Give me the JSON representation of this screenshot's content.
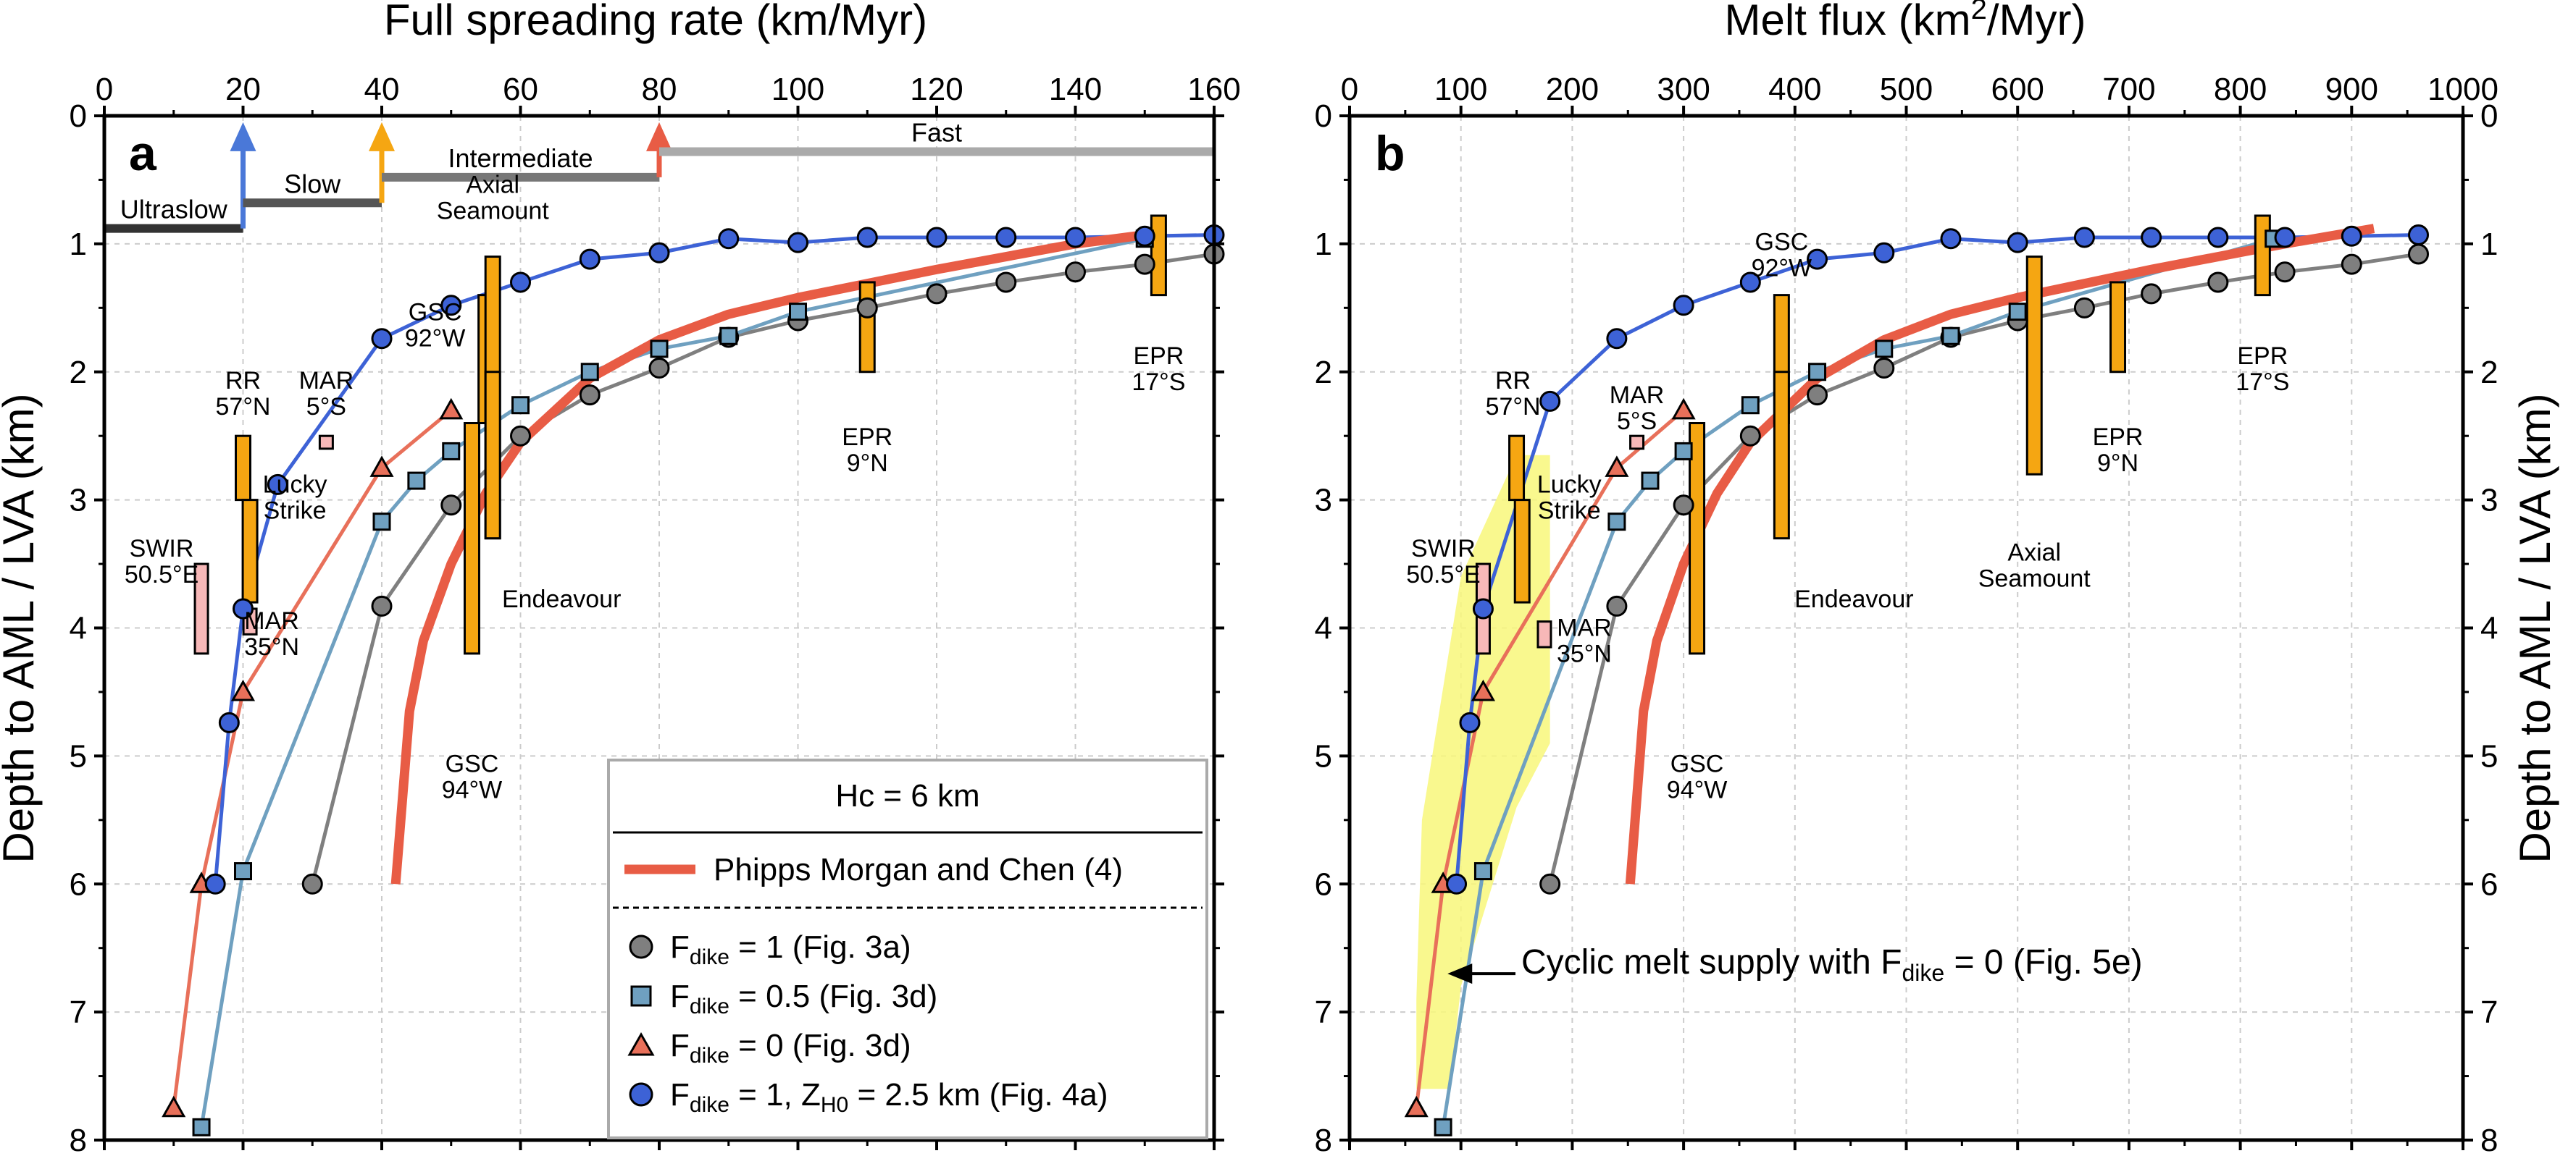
{
  "ylabel": "Depth to AML / LVA (km)",
  "colors": {
    "dike1": "#7f7f7f",
    "dike05": "#6fa0c0",
    "dike0": "#e8705a",
    "zh0": "#3d62d6",
    "pmc": "#e85c45",
    "bar": "#f5a612",
    "pinkbar": "#f7b8b8",
    "cyclic": "#f8f77a",
    "arrow_ultraslow": "#4a78d8",
    "arrow_slow": "#f5a612",
    "arrow_intermediate": "#e85c45"
  },
  "legend": {
    "title": "Hc = 6 km",
    "pmc": "Phipps Morgan and Chen (4)",
    "d1_pre": "F",
    "d1_sub": "dike",
    "d1_post": " = 1 (Fig. 3a)",
    "d05_pre": "F",
    "d05_sub": "dike",
    "d05_post": " = 0.5 (Fig. 3d)",
    "d0_pre": "F",
    "d0_sub": "dike",
    "d0_post": " = 0 (Fig. 3d)",
    "zh_pre": "F",
    "zh_sub": "dike",
    "zh_mid": " = 1, Z",
    "zh_sub2": "H0",
    "zh_post": " = 2.5 km (Fig. 4a)"
  },
  "chart_data": [
    {
      "panel": "a",
      "type": "line",
      "xlabel": "Full spreading rate (km/Myr)",
      "ylabel": "Depth to AML / LVA (km)",
      "xlim": [
        0,
        160
      ],
      "ylim": [
        8,
        0
      ],
      "xticks": [
        0,
        20,
        40,
        60,
        80,
        100,
        120,
        140,
        160
      ],
      "yticks": [
        0,
        1,
        2,
        3,
        4,
        5,
        6,
        7,
        8
      ],
      "grid": true,
      "series": [
        {
          "name": "Fdike = 1 (Fig. 3a)",
          "marker": "circle",
          "x": [
            30,
            40,
            50,
            60,
            70,
            80,
            90,
            100,
            110,
            120,
            130,
            140,
            150,
            160
          ],
          "y": [
            6.0,
            3.83,
            3.04,
            2.5,
            2.18,
            1.97,
            1.73,
            1.6,
            1.5,
            1.39,
            1.3,
            1.22,
            1.16,
            1.08
          ]
        },
        {
          "name": "Fdike = 0.5 (Fig. 3d)",
          "marker": "square",
          "x": [
            14,
            20,
            40,
            45,
            50,
            60,
            70,
            80,
            90,
            100,
            150
          ],
          "y": [
            7.9,
            5.9,
            3.17,
            2.85,
            2.62,
            2.26,
            2.0,
            1.82,
            1.72,
            1.53,
            0.96
          ]
        },
        {
          "name": "Fdike = 0 (Fig. 3d)",
          "marker": "triangle",
          "x": [
            10,
            14,
            20,
            40,
            50
          ],
          "y": [
            7.75,
            6.0,
            4.5,
            2.75,
            2.3
          ]
        },
        {
          "name": "Fdike = 1, ZH0 = 2.5 km (Fig. 4a)",
          "marker": "circle",
          "x": [
            16,
            18,
            20,
            25,
            40,
            50,
            60,
            70,
            80,
            90,
            100,
            110,
            120,
            130,
            140,
            150,
            160
          ],
          "y": [
            6.0,
            4.74,
            3.85,
            2.88,
            1.74,
            1.48,
            1.3,
            1.12,
            1.07,
            0.96,
            0.99,
            0.95,
            0.95,
            0.95,
            0.95,
            0.94,
            0.93
          ]
        },
        {
          "name": "Phipps Morgan and Chen (4)",
          "marker": "none",
          "x": [
            42,
            44,
            46,
            50,
            55,
            60,
            70,
            80,
            90,
            100,
            120,
            140,
            150
          ],
          "y": [
            6.0,
            4.65,
            4.1,
            3.5,
            2.95,
            2.55,
            2.05,
            1.75,
            1.55,
            1.42,
            1.2,
            1.0,
            0.93
          ]
        }
      ],
      "ranges": [
        {
          "label": "Ultraslow",
          "x": [
            0,
            20
          ],
          "y": 0.88
        },
        {
          "label": "Slow",
          "x": [
            20,
            40
          ],
          "y": 0.68
        },
        {
          "label": "Intermediate",
          "x": [
            40,
            80
          ],
          "y": 0.48
        },
        {
          "label": "Fast",
          "x": [
            80,
            160
          ],
          "y": 0.28
        }
      ],
      "sites": [
        {
          "label": [
            "RR",
            "57°N"
          ],
          "x": 20,
          "y": [
            2.5,
            3.0
          ]
        },
        {
          "label": [
            "Lucky",
            "Strike"
          ],
          "x": 21,
          "y": [
            3.0,
            3.8
          ]
        },
        {
          "label": [
            "SWIR",
            "50.5°E"
          ],
          "x": 14,
          "y": [
            3.5,
            4.2
          ],
          "pink": true
        },
        {
          "label": [
            "MAR",
            "5°S"
          ],
          "x": 32,
          "y": [
            2.5,
            2.6
          ],
          "pink": true
        },
        {
          "label": [
            "MAR",
            "35°N"
          ],
          "x": 21,
          "y": [
            3.85,
            4.05
          ],
          "pink": true
        },
        {
          "label": [
            "GSC",
            "92°W"
          ],
          "x": 55,
          "y": [
            1.4,
            2.4
          ]
        },
        {
          "label": [
            "Axial",
            "Seamount"
          ],
          "x": 56,
          "y": [
            1.1,
            3.3
          ]
        },
        {
          "label": [
            "Endeavour"
          ],
          "x": 56,
          "y": [
            2.0,
            3.3
          ]
        },
        {
          "label": [
            "GSC",
            "94°W"
          ],
          "x": 53,
          "y": [
            2.4,
            4.2
          ]
        },
        {
          "label": [
            "EPR",
            "9°N"
          ],
          "x": 110,
          "y": [
            1.3,
            2.0
          ]
        },
        {
          "label": [
            "EPR",
            "17°S"
          ],
          "x": 152,
          "y": [
            0.78,
            1.4
          ]
        }
      ]
    },
    {
      "panel": "b",
      "type": "line",
      "xlabel": "Melt flux (km²/Myr)",
      "ylabel": "Depth to AML / LVA (km)",
      "xlim": [
        0,
        1000
      ],
      "ylim": [
        8,
        0
      ],
      "xticks": [
        0,
        100,
        200,
        300,
        400,
        500,
        600,
        700,
        800,
        900,
        1000
      ],
      "yticks": [
        0,
        1,
        2,
        3,
        4,
        5,
        6,
        7,
        8
      ],
      "grid": true,
      "series": [
        {
          "name": "Fdike = 1 (Fig. 3a)",
          "marker": "circle",
          "x": [
            180,
            240,
            300,
            360,
            420,
            480,
            540,
            600,
            660,
            720,
            780,
            840,
            900,
            960
          ],
          "y": [
            6.0,
            3.83,
            3.04,
            2.5,
            2.18,
            1.97,
            1.73,
            1.6,
            1.5,
            1.39,
            1.3,
            1.22,
            1.16,
            1.08
          ]
        },
        {
          "name": "Fdike = 0.5 (Fig. 3d)",
          "marker": "square",
          "x": [
            84,
            120,
            240,
            270,
            300,
            360,
            420,
            480,
            540,
            600,
            830
          ],
          "y": [
            7.9,
            5.9,
            3.17,
            2.85,
            2.62,
            2.26,
            2.0,
            1.82,
            1.72,
            1.53,
            0.96
          ]
        },
        {
          "name": "Fdike = 0 (Fig. 3d)",
          "marker": "triangle",
          "x": [
            60,
            84,
            120,
            240,
            300
          ],
          "y": [
            7.75,
            6.0,
            4.5,
            2.75,
            2.3
          ]
        },
        {
          "name": "Fdike = 1, ZH0 = 2.5 km (Fig. 4a)",
          "marker": "circle",
          "x": [
            96,
            108,
            120,
            180,
            240,
            300,
            360,
            420,
            480,
            540,
            600,
            660,
            720,
            780,
            840,
            900,
            960
          ],
          "y": [
            6.0,
            4.74,
            3.85,
            2.23,
            1.74,
            1.48,
            1.3,
            1.12,
            1.07,
            0.96,
            0.99,
            0.95,
            0.95,
            0.95,
            0.95,
            0.94,
            0.93
          ]
        },
        {
          "name": "Phipps Morgan and Chen (4)",
          "marker": "none",
          "x": [
            252,
            264,
            276,
            300,
            330,
            360,
            420,
            480,
            540,
            600,
            720,
            840,
            920
          ],
          "y": [
            6.0,
            4.65,
            4.1,
            3.5,
            2.95,
            2.55,
            2.05,
            1.75,
            1.55,
            1.42,
            1.2,
            1.0,
            0.88
          ]
        }
      ],
      "annotation": {
        "text_pre": "Cyclic melt supply with F",
        "text_sub": "dike",
        "text_post": " = 0 (Fig. 5e)",
        "arrow_to": [
          88,
          6.7
        ]
      },
      "cyclic_region": [
        [
          60,
          6.9
        ],
        [
          65,
          5.5
        ],
        [
          100,
          3.6
        ],
        [
          150,
          2.65
        ],
        [
          180,
          2.65
        ],
        [
          180,
          4.9
        ],
        [
          150,
          5.4
        ],
        [
          100,
          6.8
        ],
        [
          90,
          7.6
        ],
        [
          60,
          7.6
        ]
      ],
      "sites": [
        {
          "label": [
            "RR",
            "57°N"
          ],
          "x": 150,
          "y": [
            2.5,
            3.0
          ]
        },
        {
          "label": [
            "Lucky",
            "Strike"
          ],
          "x": 155,
          "y": [
            3.0,
            3.8
          ]
        },
        {
          "label": [
            "SWIR",
            "50.5°E"
          ],
          "x": 120,
          "y": [
            3.5,
            4.2
          ],
          "pink": true
        },
        {
          "label": [
            "MAR",
            "5°S"
          ],
          "x": 258,
          "y": [
            2.5,
            2.6
          ],
          "pink": true
        },
        {
          "label": [
            "MAR",
            "35°N"
          ],
          "x": 175,
          "y": [
            3.95,
            4.15
          ],
          "pink": true
        },
        {
          "label": [
            "GSC",
            "92°W"
          ],
          "x": 388,
          "y": [
            1.4,
            2.4
          ]
        },
        {
          "label": [
            "Endeavour"
          ],
          "x": 388,
          "y": [
            2.0,
            3.3
          ]
        },
        {
          "label": [
            "GSC",
            "94°W"
          ],
          "x": 312,
          "y": [
            2.4,
            4.2
          ]
        },
        {
          "label": [
            "Axial",
            "Seamount"
          ],
          "x": 615,
          "y": [
            1.1,
            2.8
          ]
        },
        {
          "label": [
            "EPR",
            "9°N"
          ],
          "x": 690,
          "y": [
            1.3,
            2.0
          ]
        },
        {
          "label": [
            "EPR",
            "17°S"
          ],
          "x": 820,
          "y": [
            0.78,
            1.4
          ]
        }
      ]
    }
  ]
}
